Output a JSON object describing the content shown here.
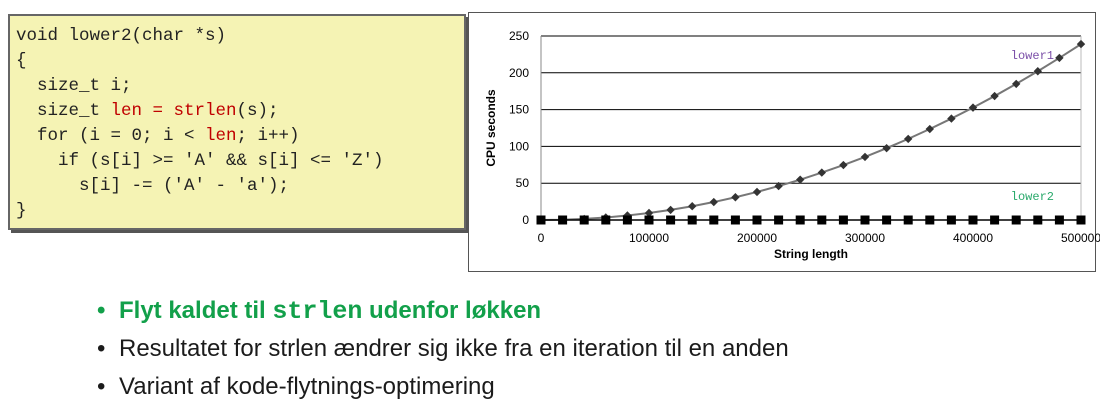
{
  "code": {
    "lines": [
      {
        "parts": [
          {
            "text": "void lower2(char *s)"
          }
        ]
      },
      {
        "parts": [
          {
            "text": "{"
          }
        ]
      },
      {
        "parts": [
          {
            "text": "  size_t i;"
          }
        ]
      },
      {
        "parts": [
          {
            "text": "  size_t "
          },
          {
            "text": "len = strlen",
            "highlight": true
          },
          {
            "text": "(s);"
          }
        ]
      },
      {
        "parts": [
          {
            "text": "  for (i = 0; i < "
          },
          {
            "text": "len",
            "highlight": true
          },
          {
            "text": "; i++)"
          }
        ]
      },
      {
        "parts": [
          {
            "text": "    if (s[i] >= 'A' && s[i] <= 'Z')"
          }
        ]
      },
      {
        "parts": [
          {
            "text": "      s[i] -= ('A' - 'a');"
          }
        ]
      },
      {
        "parts": [
          {
            "text": "}"
          }
        ]
      }
    ],
    "background_color": "#f5f3b4",
    "highlight_color": "#c00000"
  },
  "chart_data": {
    "type": "line",
    "xlabel": "String length",
    "ylabel": "CPU seconds",
    "xlim": [
      0,
      500000
    ],
    "ylim": [
      0,
      250
    ],
    "x_ticks": [
      0,
      100000,
      200000,
      300000,
      400000,
      500000
    ],
    "y_ticks": [
      0,
      50,
      100,
      150,
      200,
      250
    ],
    "x_tick_labels": [
      "0",
      "100000",
      "200000",
      "300000",
      "400000",
      "500000"
    ],
    "y_tick_labels": [
      "0",
      "50",
      "100",
      "150",
      "200",
      "250"
    ],
    "grid": "horizontal",
    "x": [
      0,
      20000,
      40000,
      60000,
      80000,
      100000,
      120000,
      140000,
      160000,
      180000,
      200000,
      220000,
      240000,
      260000,
      280000,
      300000,
      320000,
      340000,
      360000,
      380000,
      400000,
      420000,
      440000,
      460000,
      480000,
      500000
    ],
    "series": [
      {
        "name": "lower1",
        "color": "#7b4fa8",
        "marker": "diamond",
        "values": [
          0,
          0.4,
          1.5,
          3.4,
          6.1,
          9.5,
          13.7,
          18.7,
          24.4,
          30.9,
          38.1,
          46.1,
          54.8,
          64.4,
          74.7,
          85.7,
          97.6,
          110.2,
          123.6,
          137.8,
          152.7,
          168.4,
          184.9,
          202.1,
          220.2,
          239
        ]
      },
      {
        "name": "lower2",
        "color": "#2aa96b",
        "marker": "square",
        "values": [
          0,
          0,
          0,
          0,
          0,
          0,
          0,
          0,
          0,
          0,
          0,
          0,
          0,
          0,
          0,
          0,
          0,
          0,
          0,
          0,
          0,
          0,
          0,
          0,
          0,
          0
        ]
      }
    ]
  },
  "bullets": [
    {
      "pre": "Flyt kaldet til ",
      "mono": "strlen",
      "post": " udenfor løkken",
      "style": "green"
    },
    {
      "pre": "Resultatet for strlen ændrer sig ikke fra en iteration til en anden",
      "mono": "",
      "post": "",
      "style": "normal"
    },
    {
      "pre": "Variant af kode-flytnings-optimering",
      "mono": "",
      "post": "",
      "style": "normal"
    }
  ],
  "bullet_glyph": "•"
}
